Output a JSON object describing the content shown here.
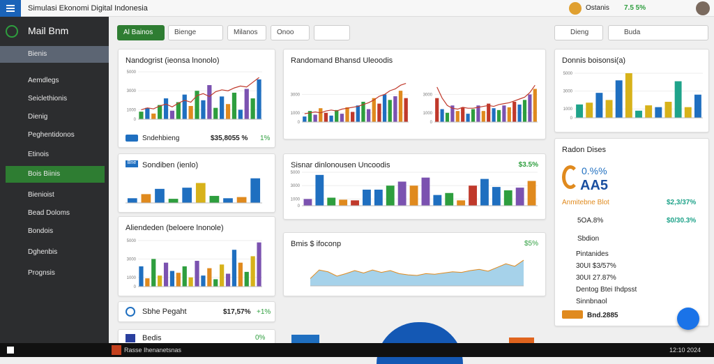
{
  "header": {
    "title": "Simulasi Ekonomi Digital Indonesia",
    "user": "Ostanis",
    "stat": "7.5 5%"
  },
  "sidebar": {
    "brand": "Mail Bnm",
    "items": [
      "Bienis",
      "Aemdlegs",
      "Seiclethionis",
      "Dienig",
      "Peghentidonos",
      "Etinois",
      "Bois Biinis",
      "Bienioist",
      "Bead Doloms",
      "Bondois",
      "Dghenbis",
      "Prognsis"
    ]
  },
  "toolbar": {
    "primary": "Al Bainos",
    "filters": [
      "Bienge",
      "Milanos",
      "Onoo"
    ],
    "search": "Dieng",
    "select": "Buda"
  },
  "cards": [
    {
      "title": "Nandogrist (ieonsa lnonolo)",
      "chart": {
        "type": "bar",
        "ylim": [
          0,
          5000
        ],
        "yticks": [
          0,
          1000,
          3000,
          5000
        ],
        "colors": [
          "#2e9e3e",
          "#1f6fc0",
          "#e08a1e",
          "#2e9e3e",
          "#1f6fc0",
          "#7b52b0"
        ],
        "values": [
          800,
          1200,
          600,
          1500,
          2200,
          900,
          1800,
          2600,
          1400,
          3000,
          2000,
          3600,
          1200,
          2400,
          1600,
          2800,
          1000,
          3200,
          2200,
          4200
        ],
        "line": [
          1000,
          1200,
          1100,
          1400,
          1600,
          1300,
          1700,
          2000,
          1800,
          2500,
          2700,
          2400,
          2900,
          3100,
          3000,
          3300,
          3500,
          3400,
          3900,
          4400
        ]
      },
      "footer": {
        "label": "Sndehbieng",
        "value": "$35,8055 %",
        "change": "1%"
      }
    },
    {
      "title": "Randomand Bhansd Uleoodis",
      "chart": {
        "type": "bar",
        "ylim": [
          0,
          5000
        ],
        "yticks": [
          0,
          1000,
          3000
        ],
        "colors": [
          "#1f6fc0",
          "#2e9e3e",
          "#7b52b0",
          "#e08a1e",
          "#c0392b"
        ],
        "values": [
          600,
          1200,
          800,
          1500,
          1000,
          700,
          1300,
          900,
          1600,
          1100,
          1800,
          2200,
          1400,
          2600,
          2000,
          3000,
          2400,
          2800,
          3400,
          2600
        ],
        "line": [
          900,
          1000,
          1100,
          1000,
          1200,
          1300,
          1200,
          1400,
          1500,
          1600,
          1700,
          1900,
          2100,
          2400,
          2800,
          3000,
          3400,
          3600,
          4000,
          4200
        ]
      },
      "chart2": {
        "type": "bar",
        "ylim": [
          0,
          5000
        ],
        "yticks": [
          0,
          1000,
          3000
        ],
        "colors": [
          "#c0392b",
          "#1f6fc0",
          "#2e9e3e",
          "#7b52b0",
          "#e08a1e"
        ],
        "values": [
          2600,
          1400,
          1000,
          1800,
          1200,
          1600,
          900,
          1400,
          1800,
          1200,
          2000,
          1500,
          1300,
          1800,
          1600,
          2200,
          1900,
          2400,
          3000,
          3600
        ],
        "line": [
          3800,
          2600,
          1800,
          1500,
          1400,
          1600,
          1500,
          1500,
          1600,
          1700,
          1800,
          1700,
          1900,
          2000,
          2100,
          2300,
          2500,
          2700,
          3200,
          4000
        ]
      }
    },
    {
      "title": "Donnis boisonsi(a)",
      "chart": {
        "type": "bar",
        "ylim": [
          0,
          5000
        ],
        "yticks": [
          0,
          1000,
          3000,
          5000
        ],
        "colors": [
          "#1fa38a",
          "#d7b21a",
          "#1f6fc0",
          "#d7b21a",
          "#1f6fc0",
          "#d7b21a",
          "#1fa38a",
          "#d7b21a",
          "#1f6fc0",
          "#d7b21a"
        ],
        "values": [
          1500,
          1700,
          2800,
          2000,
          4200,
          5000,
          800,
          1400,
          1200,
          1800,
          4100,
          1200,
          2600
        ]
      }
    },
    {
      "title": "Sondiben (ienlo)",
      "badge": "Bne",
      "chart": {
        "type": "bar",
        "ylim": [
          0,
          5000
        ],
        "colors": [
          "#1f6fc0",
          "#e08a1e",
          "#1f6fc0",
          "#2e9e3e",
          "#1f6fc0",
          "#d7b21a",
          "#2e9e3e"
        ],
        "values": [
          800,
          1500,
          2400,
          700,
          2600,
          3400,
          1200,
          800,
          1000,
          4200
        ]
      }
    },
    {
      "title": "Sisnar dinlonousen Uncoodis",
      "value": "$3.5%",
      "chart": {
        "type": "bar",
        "ylim": [
          0,
          5000
        ],
        "yticks": [
          0,
          1000,
          3000,
          5000
        ],
        "colors": [
          "#7b52b0",
          "#1f6fc0",
          "#2e9e3e",
          "#e08a1e",
          "#c0392b",
          "#1f6fc0",
          "#1f6fc0",
          "#2e9e3e",
          "#7b52b0",
          "#e08a1e"
        ],
        "values": [
          1000,
          4600,
          1200,
          900,
          800,
          2400,
          2400,
          3000,
          3600,
          3000,
          4200,
          1600,
          1900,
          800,
          3000,
          4000,
          2800,
          2300,
          2700,
          3700
        ]
      }
    },
    {
      "title": "Aliendeden (beloere lnonole)",
      "chart": {
        "type": "bar",
        "ylim": [
          0,
          5000
        ],
        "yticks": [
          0,
          1000,
          3000,
          5000
        ],
        "colors": [
          "#1f6fc0",
          "#e08a1e",
          "#2e9e3e",
          "#d7b21a",
          "#7b52b0"
        ],
        "values": [
          2200,
          900,
          3000,
          1200,
          2600,
          1700,
          1500,
          2200,
          1000,
          2800,
          1200,
          2000,
          800,
          2400,
          1400,
          4000,
          2600,
          1600,
          3300,
          4800
        ]
      }
    },
    {
      "title": "Bmis $ ifoconp",
      "value": "$5%",
      "chart": {
        "type": "area",
        "ylim": [
          0,
          5000
        ],
        "colors": [
          "#3a9bd1"
        ],
        "values": [
          1200,
          2600,
          2300,
          1600,
          2000,
          2500,
          2100,
          2600,
          2200,
          2500,
          2000,
          1800,
          1700,
          2000,
          1900,
          2100,
          2300,
          2200,
          2500,
          2700,
          2400,
          3000,
          3600,
          3200,
          4200
        ]
      }
    },
    {
      "title": "Sbhe Pegaht",
      "value": "$17,57%",
      "change": "+1%"
    },
    {
      "title": "Bedis",
      "change": "0%"
    }
  ],
  "panel": {
    "title": "Radon Dises",
    "kpi": "0.%%",
    "big": "AA5",
    "rows": [
      [
        "Anmitebne Blot",
        "$2,3/37%"
      ],
      [
        "5OA.8%",
        "$0/30.3%"
      ],
      [
        "Sbdion",
        ""
      ]
    ],
    "list": [
      "Pintanides",
      "30UI $3/57%",
      "30UI 27.87%",
      "Dentog Btei Ihdpsst",
      "Sinnbnaol"
    ],
    "footer": "Bnd.2885"
  },
  "taskbar": {
    "app": "Rasse Ihenanetsnas",
    "time": "12:10 2024"
  }
}
